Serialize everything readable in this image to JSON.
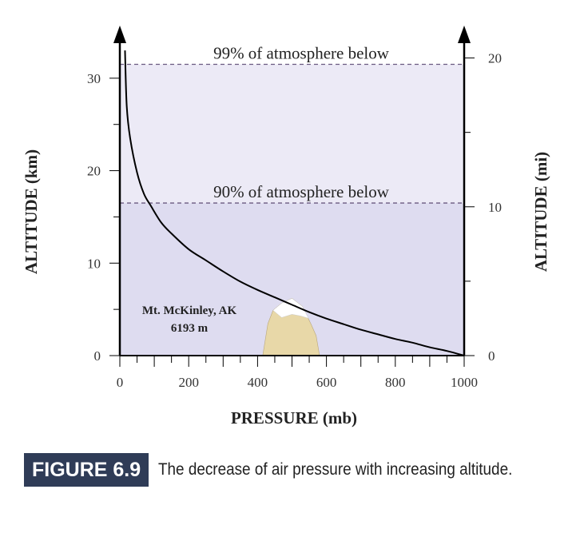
{
  "chart_data": {
    "type": "line",
    "xlabel": "PRESSURE (mb)",
    "ylabel": "ALTITUDE (km)",
    "ylabel_right": "ALTITUDE (mi)",
    "xlim": [
      0,
      1000
    ],
    "ylim": [
      0,
      35
    ],
    "x_ticks": [
      0,
      200,
      400,
      600,
      800,
      1000
    ],
    "y_ticks": [
      0,
      10,
      20,
      30
    ],
    "y_ticks_right": [
      0,
      10,
      20
    ],
    "series": [
      {
        "x": [
          15,
          20,
          30,
          50,
          70,
          90,
          120,
          150,
          200,
          250,
          300,
          350,
          400,
          450,
          500,
          550,
          600,
          650,
          700,
          750,
          800,
          850,
          900,
          950,
          1000
        ],
        "y": [
          33,
          27,
          23.5,
          19.8,
          17.5,
          16.2,
          14.4,
          13.2,
          11.5,
          10.3,
          9.1,
          8.0,
          7.1,
          6.3,
          5.5,
          4.7,
          4.0,
          3.4,
          2.8,
          2.3,
          1.8,
          1.4,
          0.9,
          0.5,
          0
        ]
      }
    ],
    "annotations": [
      {
        "text": "99% of atmosphere below",
        "y": 31.5
      },
      {
        "text": "90% of atmosphere below",
        "y": 16.5
      }
    ],
    "mountain": {
      "label": "Mt. McKinley, AK",
      "elevation_label": "6193 m",
      "x": 500,
      "y": 6.193
    }
  },
  "caption": {
    "figure": "FIGURE 6.9",
    "text": "The decrease of air pressure with increasing altitude."
  },
  "colors": {
    "shade_upper": "#eceaf6",
    "shade_lower": "#dedcf0",
    "mountain": "#e8d8a8",
    "snow": "#ffffff",
    "dashed": "#6a5a80",
    "figure_box": "#2f3c57"
  }
}
